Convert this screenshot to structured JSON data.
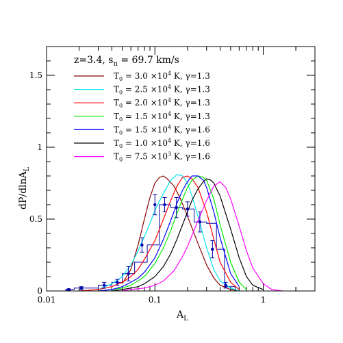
{
  "chart_data": {
    "type": "line",
    "xlabel": "A",
    "xlabel_sub": "L",
    "ylabel": "dP/dlnA",
    "ylabel_sub": "L",
    "x_scale": "log",
    "xlim": [
      0.01,
      3
    ],
    "ylim": [
      0,
      1.7
    ],
    "x_ticks": [
      {
        "value": 0.01,
        "label": "0.01"
      },
      {
        "value": 0.1,
        "label": "0.1"
      },
      {
        "value": 1,
        "label": "1"
      }
    ],
    "y_ticks": [
      {
        "value": 0,
        "label": "0"
      },
      {
        "value": 0.5,
        "label": "0.5"
      },
      {
        "value": 1,
        "label": "1"
      },
      {
        "value": 1.5,
        "label": "1.5"
      }
    ],
    "annotation": {
      "pre": "z=3.4, s",
      "sub": "n",
      "post": " = 69.7 km/s"
    },
    "legend_position": "top-left",
    "series": [
      {
        "name": "T0 = 3.0 ×10^4 K, γ=1.3",
        "T0_mant": "3.0",
        "T0_exp": "4",
        "gamma": "1.3",
        "color": "#8b0000",
        "x": [
          0.05,
          0.06,
          0.07,
          0.08,
          0.09,
          0.1,
          0.11,
          0.12,
          0.13,
          0.15,
          0.17,
          0.2,
          0.25,
          0.3,
          0.35,
          0.4,
          0.5,
          0.6
        ],
        "y": [
          0.05,
          0.15,
          0.32,
          0.5,
          0.65,
          0.75,
          0.79,
          0.8,
          0.78,
          0.73,
          0.65,
          0.52,
          0.33,
          0.18,
          0.09,
          0.04,
          0.01,
          0
        ]
      },
      {
        "name": "T0 = 2.5 ×10^4 K, γ=1.3",
        "T0_mant": "2.5",
        "T0_exp": "4",
        "gamma": "1.3",
        "color": "#00e5ee",
        "x": [
          0.03,
          0.04,
          0.05,
          0.06,
          0.07,
          0.08,
          0.09,
          0.1,
          0.12,
          0.14,
          0.16,
          0.18,
          0.2,
          0.22,
          0.25,
          0.3,
          0.35,
          0.4,
          0.5,
          0.6
        ],
        "y": [
          0.01,
          0.05,
          0.1,
          0.18,
          0.28,
          0.38,
          0.47,
          0.56,
          0.68,
          0.77,
          0.81,
          0.8,
          0.75,
          0.66,
          0.52,
          0.3,
          0.15,
          0.07,
          0.02,
          0
        ]
      },
      {
        "name": "T0 = 2.0 ×10^4 K, γ=1.3",
        "T0_mant": "2.0",
        "T0_exp": "4",
        "gamma": "1.3",
        "color": "#ff0000",
        "x": [
          0.02,
          0.03,
          0.04,
          0.05,
          0.06,
          0.07,
          0.08,
          0.1,
          0.12,
          0.14,
          0.16,
          0.18,
          0.2,
          0.22,
          0.25,
          0.3,
          0.35,
          0.4,
          0.5,
          0.6
        ],
        "y": [
          0,
          0.01,
          0.03,
          0.06,
          0.1,
          0.15,
          0.22,
          0.35,
          0.5,
          0.63,
          0.73,
          0.79,
          0.8,
          0.78,
          0.72,
          0.55,
          0.36,
          0.2,
          0.06,
          0.01
        ]
      },
      {
        "name": "T0 = 1.5 ×10^4 K, γ=1.3",
        "T0_mant": "1.5",
        "T0_exp": "4",
        "gamma": "1.3",
        "color": "#00ee00",
        "x": [
          0.03,
          0.04,
          0.05,
          0.06,
          0.07,
          0.08,
          0.1,
          0.12,
          0.14,
          0.16,
          0.18,
          0.2,
          0.22,
          0.25,
          0.28,
          0.3,
          0.35,
          0.4,
          0.5,
          0.6,
          0.7
        ],
        "y": [
          0,
          0.01,
          0.02,
          0.04,
          0.07,
          0.1,
          0.19,
          0.3,
          0.42,
          0.54,
          0.64,
          0.72,
          0.77,
          0.8,
          0.79,
          0.77,
          0.64,
          0.46,
          0.2,
          0.06,
          0.01
        ]
      },
      {
        "name": "T0 = 1.5 ×10^4 K, γ=1.6",
        "T0_mant": "1.5",
        "T0_exp": "4",
        "gamma": "1.6",
        "color": "#0000ff",
        "x": [
          0.03,
          0.04,
          0.05,
          0.06,
          0.07,
          0.08,
          0.1,
          0.12,
          0.14,
          0.16,
          0.18,
          0.2,
          0.22,
          0.25,
          0.28,
          0.3,
          0.35,
          0.4,
          0.5,
          0.6
        ],
        "y": [
          0,
          0.01,
          0.03,
          0.06,
          0.09,
          0.13,
          0.23,
          0.36,
          0.49,
          0.61,
          0.7,
          0.76,
          0.8,
          0.8,
          0.77,
          0.72,
          0.55,
          0.37,
          0.12,
          0.03
        ]
      },
      {
        "name": "T0 = 1.0 ×10^4 K, γ=1.6",
        "T0_mant": "1.0",
        "T0_exp": "4",
        "gamma": "1.6",
        "color": "#000000",
        "x": [
          0.04,
          0.05,
          0.06,
          0.07,
          0.08,
          0.1,
          0.12,
          0.14,
          0.16,
          0.18,
          0.2,
          0.22,
          0.25,
          0.28,
          0.3,
          0.33,
          0.35,
          0.4,
          0.5,
          0.6,
          0.7,
          0.8,
          1.0
        ],
        "y": [
          0,
          0.01,
          0.02,
          0.03,
          0.05,
          0.1,
          0.17,
          0.26,
          0.36,
          0.46,
          0.55,
          0.63,
          0.71,
          0.76,
          0.78,
          0.77,
          0.75,
          0.66,
          0.43,
          0.23,
          0.1,
          0.04,
          0.01
        ]
      },
      {
        "name": "T0 = 7.5 ×10^3 K, γ=1.6",
        "T0_mant": "7.5",
        "T0_exp": "3",
        "gamma": "1.6",
        "color": "#ff00ff",
        "x": [
          0.05,
          0.06,
          0.08,
          0.1,
          0.12,
          0.15,
          0.18,
          0.2,
          0.25,
          0.3,
          0.35,
          0.4,
          0.45,
          0.5,
          0.6,
          0.7,
          0.8,
          1.0,
          1.2,
          1.5
        ],
        "y": [
          0,
          0.01,
          0.02,
          0.04,
          0.07,
          0.14,
          0.24,
          0.31,
          0.49,
          0.63,
          0.73,
          0.76,
          0.72,
          0.64,
          0.45,
          0.28,
          0.16,
          0.05,
          0.01,
          0
        ]
      }
    ],
    "histogram": {
      "color": "#0000aa",
      "edges": [
        0.015,
        0.018,
        0.024,
        0.03,
        0.04,
        0.05,
        0.065,
        0.085,
        0.11,
        0.14,
        0.18,
        0.23,
        0.3,
        0.37,
        0.44,
        0.55
      ],
      "values": [
        0.01,
        0.02,
        0.02,
        0.04,
        0.06,
        0.12,
        0.2,
        0.32,
        0.6,
        0.58,
        0.57,
        0.48,
        0.47,
        0.29,
        0.03
      ]
    },
    "points": [
      {
        "x": 0.016,
        "y": 0.01,
        "err": 0.005
      },
      {
        "x": 0.021,
        "y": 0.02,
        "err": 0.01
      },
      {
        "x": 0.034,
        "y": 0.04,
        "err": 0.02
      },
      {
        "x": 0.045,
        "y": 0.06,
        "err": 0.02
      },
      {
        "x": 0.057,
        "y": 0.12,
        "err": 0.05
      },
      {
        "x": 0.076,
        "y": 0.32,
        "err": 0.05
      },
      {
        "x": 0.1,
        "y": 0.6,
        "err": 0.07
      },
      {
        "x": 0.123,
        "y": 0.6,
        "err": 0.05
      },
      {
        "x": 0.158,
        "y": 0.58,
        "err": 0.07
      },
      {
        "x": 0.2,
        "y": 0.57,
        "err": 0.05
      },
      {
        "x": 0.26,
        "y": 0.48,
        "err": 0.07
      },
      {
        "x": 0.34,
        "y": 0.29,
        "err": 0.06
      },
      {
        "x": 0.45,
        "y": 0.04,
        "err": 0.02
      }
    ]
  }
}
